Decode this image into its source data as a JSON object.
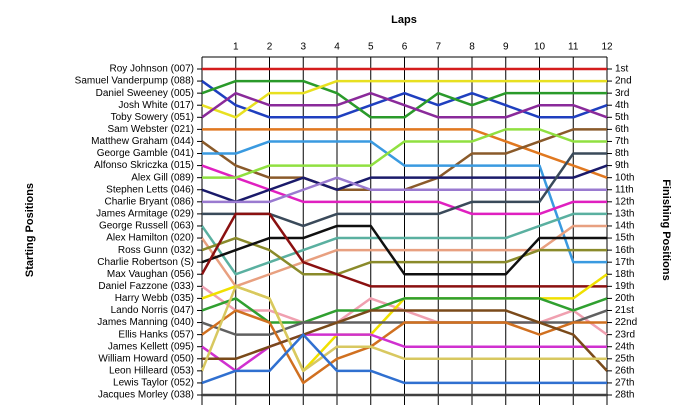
{
  "chart_data": {
    "type": "line",
    "title": "Laps",
    "y_label_left": "Starting Positions",
    "y_label_right": "Finishing Positions",
    "x": [
      0,
      1,
      2,
      3,
      4,
      5,
      6,
      7,
      8,
      9,
      10,
      11,
      12
    ],
    "xlim": [
      0,
      12
    ],
    "xticks": [
      1,
      2,
      3,
      4,
      5,
      6,
      7,
      8,
      9,
      10,
      11,
      12
    ],
    "ylim": [
      1,
      28
    ],
    "yticks": [
      {
        "value": 1,
        "label": "1st"
      },
      {
        "value": 2,
        "label": "2nd"
      },
      {
        "value": 3,
        "label": "3rd"
      },
      {
        "value": 4,
        "label": "4th"
      },
      {
        "value": 5,
        "label": "5th"
      },
      {
        "value": 6,
        "label": "6th"
      },
      {
        "value": 7,
        "label": "7th"
      },
      {
        "value": 8,
        "label": "8th"
      },
      {
        "value": 9,
        "label": "9th"
      },
      {
        "value": 10,
        "label": "10th"
      },
      {
        "value": 11,
        "label": "11th"
      },
      {
        "value": 12,
        "label": "12th"
      },
      {
        "value": 13,
        "label": "13th"
      },
      {
        "value": 14,
        "label": "14th"
      },
      {
        "value": 15,
        "label": "15th"
      },
      {
        "value": 16,
        "label": "16th"
      },
      {
        "value": 17,
        "label": "17th"
      },
      {
        "value": 18,
        "label": "18th"
      },
      {
        "value": 19,
        "label": "19th"
      },
      {
        "value": 20,
        "label": "20th"
      },
      {
        "value": 21,
        "label": "21st"
      },
      {
        "value": 22,
        "label": "22nd"
      },
      {
        "value": 23,
        "label": "23rd"
      },
      {
        "value": 24,
        "label": "24th"
      },
      {
        "value": 25,
        "label": "25th"
      },
      {
        "value": 26,
        "label": "26th"
      },
      {
        "value": 27,
        "label": "27th"
      },
      {
        "value": 28,
        "label": "28th"
      }
    ],
    "y_reversed": true,
    "series": [
      {
        "name": "Roy Johnson (007)",
        "color": "#d41c1c",
        "values": [
          1,
          1,
          1,
          1,
          1,
          1,
          1,
          1,
          1,
          1,
          1,
          1,
          1
        ]
      },
      {
        "name": "Samuel Vanderpump (088)",
        "color": "#1f3fbf",
        "values": [
          2,
          4,
          5,
          5,
          5,
          4,
          3,
          4,
          3,
          4,
          5,
          5,
          4
        ]
      },
      {
        "name": "Daniel Sweeney (005)",
        "color": "#2a9a2a",
        "values": [
          3,
          2,
          2,
          2,
          3,
          5,
          5,
          3,
          4,
          3,
          3,
          3,
          3
        ]
      },
      {
        "name": "Josh White (017)",
        "color": "#e8e020",
        "values": [
          4,
          5,
          3,
          3,
          2,
          2,
          2,
          2,
          2,
          2,
          2,
          2,
          2
        ]
      },
      {
        "name": "Toby Sowery (051)",
        "color": "#8a2a9a",
        "values": [
          5,
          3,
          4,
          4,
          4,
          3,
          4,
          5,
          5,
          5,
          4,
          4,
          5
        ]
      },
      {
        "name": "Sam Webster (021)",
        "color": "#e07820",
        "values": [
          6,
          6,
          6,
          6,
          6,
          6,
          6,
          6,
          6,
          7,
          8,
          9,
          10
        ]
      },
      {
        "name": "Matthew Graham (044)",
        "color": "#8a5a2a",
        "values": [
          7,
          9,
          10,
          10,
          11,
          11,
          11,
          10,
          8,
          8,
          7,
          6,
          6
        ]
      },
      {
        "name": "George Gamble (041)",
        "color": "#3a9ae0",
        "values": [
          8,
          8,
          7,
          7,
          7,
          7,
          9,
          9,
          9,
          9,
          9,
          17,
          17
        ]
      },
      {
        "name": "Alfonso Skriczka (015)",
        "color": "#e020c0",
        "values": [
          9,
          10,
          11,
          12,
          12,
          12,
          12,
          12,
          13,
          13,
          13,
          12,
          12
        ]
      },
      {
        "name": "Alex Gill (089)",
        "color": "#90e040",
        "values": [
          10,
          10,
          9,
          9,
          9,
          9,
          7,
          7,
          7,
          6,
          6,
          7,
          7
        ]
      },
      {
        "name": "Stephen Letts (046)",
        "color": "#1a1a6a",
        "values": [
          11,
          12,
          11,
          10,
          11,
          10,
          10,
          10,
          10,
          10,
          10,
          10,
          9
        ]
      },
      {
        "name": "Charlie Bryant (086)",
        "color": "#9a7ad0",
        "values": [
          12,
          12,
          12,
          11,
          10,
          11,
          11,
          11,
          11,
          11,
          11,
          11,
          11
        ]
      },
      {
        "name": "James Armitage (029)",
        "color": "#3a4a5a",
        "values": [
          13,
          13,
          13,
          14,
          13,
          13,
          13,
          13,
          12,
          12,
          12,
          8,
          8
        ]
      },
      {
        "name": "George Russell (063)",
        "color": "#5ab0a0",
        "values": [
          14,
          18,
          17,
          16,
          15,
          15,
          15,
          15,
          15,
          15,
          14,
          13,
          13
        ]
      },
      {
        "name": "Alex Hamilton (020)",
        "color": "#e8a080",
        "values": [
          15,
          19,
          18,
          17,
          16,
          16,
          16,
          16,
          16,
          16,
          16,
          14,
          14
        ]
      },
      {
        "name": "Ross Gunn (032)",
        "color": "#8a8a2a",
        "values": [
          16,
          15,
          16,
          18,
          18,
          17,
          17,
          17,
          17,
          17,
          16,
          16,
          16
        ]
      },
      {
        "name": "Charlie Robertson (S)",
        "color": "#101010",
        "values": [
          17,
          16,
          15,
          15,
          14,
          14,
          18,
          18,
          18,
          18,
          15,
          15,
          15
        ]
      },
      {
        "name": "Max Vaughan (056)",
        "color": "#8a1010",
        "values": [
          18,
          13,
          13,
          17,
          18,
          19,
          19,
          19,
          19,
          19,
          19,
          19,
          19
        ]
      },
      {
        "name": "Daniel Fazzone (033)",
        "color": "#f0a0b0",
        "values": [
          19,
          21,
          21,
          22,
          22,
          20,
          21,
          22,
          22,
          22,
          22,
          21,
          23
        ]
      },
      {
        "name": "Harry Webb (035)",
        "color": "#f0e000",
        "values": [
          20,
          19,
          20,
          26,
          23,
          23,
          20,
          20,
          20,
          20,
          20,
          20,
          18
        ]
      },
      {
        "name": "Lando Norris (047)",
        "color": "#30a030",
        "values": [
          21,
          20,
          22,
          22,
          21,
          21,
          20,
          20,
          20,
          20,
          20,
          21,
          20
        ]
      },
      {
        "name": "James Manning (040)",
        "color": "#606060",
        "values": [
          22,
          23,
          23,
          22,
          22,
          22,
          22,
          22,
          22,
          22,
          22,
          22,
          21
        ]
      },
      {
        "name": "Ellis Hanks (057)",
        "color": "#d07020",
        "values": [
          23,
          21,
          22,
          27,
          25,
          24,
          22,
          22,
          22,
          22,
          23,
          22,
          22
        ]
      },
      {
        "name": "James Kellett (095)",
        "color": "#d030d0",
        "values": [
          24,
          26,
          24,
          23,
          23,
          23,
          24,
          24,
          24,
          24,
          24,
          24,
          24
        ]
      },
      {
        "name": "William Howard (050)",
        "color": "#7a4a1a",
        "values": [
          25,
          25,
          24,
          23,
          22,
          21,
          21,
          21,
          21,
          21,
          22,
          23,
          26
        ]
      },
      {
        "name": "Leon Hilleard (053)",
        "color": "#d8c860",
        "values": [
          26,
          19,
          20,
          26,
          24,
          24,
          25,
          25,
          25,
          25,
          25,
          25,
          25
        ]
      },
      {
        "name": "Lewis Taylor (052)",
        "color": "#3070d0",
        "values": [
          27,
          26,
          26,
          23,
          26,
          26,
          27,
          27,
          27,
          27,
          27,
          27,
          27
        ]
      },
      {
        "name": "Jacques Morley (038)",
        "color": "#404040",
        "values": [
          28,
          28,
          28,
          28,
          28,
          28,
          28,
          28,
          28,
          28,
          28,
          28,
          28
        ]
      }
    ]
  }
}
